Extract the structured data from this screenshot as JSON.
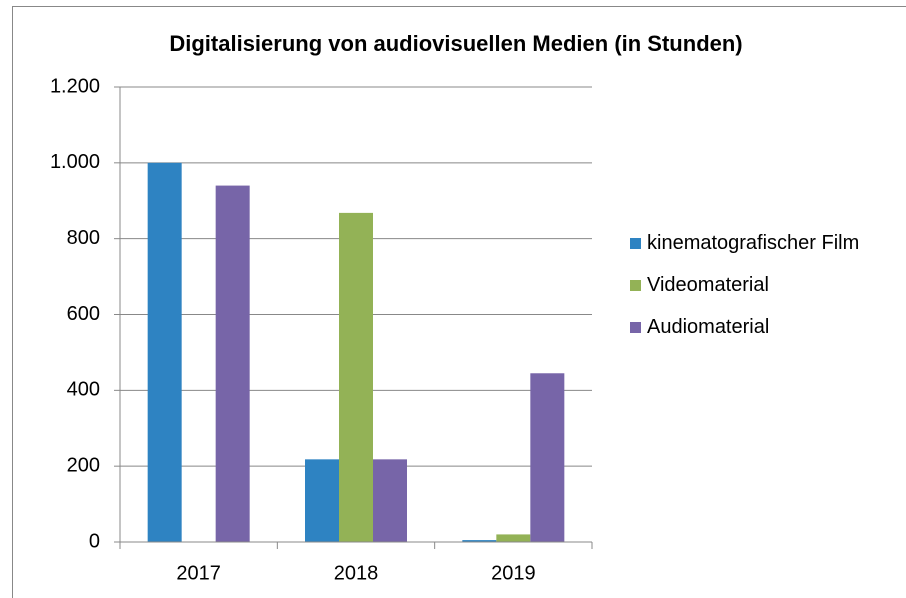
{
  "chart_data": {
    "type": "bar",
    "title": "Digitalisierung von audiovisuellen Medien (in Stunden)",
    "categories": [
      "2017",
      "2018",
      "2019"
    ],
    "series": [
      {
        "name": "kinematografischer Film",
        "color": "#2e83c2",
        "values": [
          1000,
          218,
          5
        ]
      },
      {
        "name": "Videomaterial",
        "color": "#93b256",
        "values": [
          0,
          868,
          20
        ]
      },
      {
        "name": "Audiomaterial",
        "color": "#7765a8",
        "values": [
          940,
          218,
          445
        ]
      }
    ],
    "ylim": [
      0,
      1200
    ],
    "yticks": [
      0,
      200,
      400,
      600,
      800,
      {
        "value": 1000,
        "label": "1.000"
      },
      {
        "value": 1200,
        "label": "1.200"
      }
    ],
    "grid": true,
    "legend": "right"
  }
}
